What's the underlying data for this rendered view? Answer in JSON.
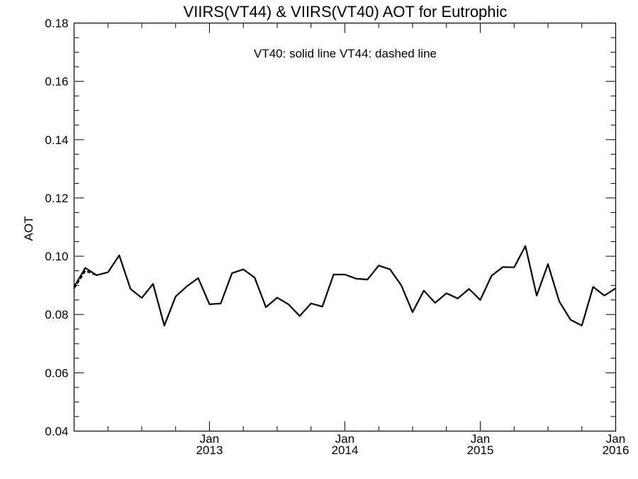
{
  "chart_data": {
    "type": "line",
    "title": "VIIRS(VT44) & VIIRS(VT40)  AOT for Eutrophic",
    "annotation": "VT40: solid line   VT44: dashed line",
    "ylabel": "AOT",
    "xlabel": "",
    "ylim": [
      0.04,
      0.18
    ],
    "xlim": [
      "2012-01",
      "2016-01"
    ],
    "yticks": [
      "0.04",
      "0.06",
      "0.08",
      "0.10",
      "0.12",
      "0.14",
      "0.16",
      "0.18"
    ],
    "xticks": [
      {
        "x": "2013-01",
        "month": "Jan",
        "year": "2013"
      },
      {
        "x": "2014-01",
        "month": "Jan",
        "year": "2014"
      },
      {
        "x": "2015-01",
        "month": "Jan",
        "year": "2015"
      },
      {
        "x": "2016-01",
        "month": "Jan",
        "year": "2016"
      }
    ],
    "series": [
      {
        "name": "VT40",
        "style": "solid",
        "color": "#000000",
        "x": [
          "2012-01",
          "2012-02",
          "2012-03",
          "2012-04",
          "2012-05",
          "2012-06",
          "2012-07",
          "2012-08",
          "2012-09",
          "2012-10",
          "2012-11",
          "2012-12",
          "2013-01",
          "2013-02",
          "2013-03",
          "2013-04",
          "2013-05",
          "2013-06",
          "2013-07",
          "2013-08",
          "2013-09",
          "2013-10",
          "2013-11",
          "2013-12",
          "2014-01",
          "2014-02",
          "2014-03",
          "2014-04",
          "2014-05",
          "2014-06",
          "2014-07",
          "2014-08",
          "2014-09",
          "2014-10",
          "2014-11",
          "2014-12",
          "2015-01",
          "2015-02",
          "2015-03",
          "2015-04",
          "2015-05",
          "2015-06",
          "2015-07",
          "2015-08",
          "2015-09",
          "2015-10",
          "2015-11",
          "2015-12",
          "2016-01"
        ],
        "y": [
          0.0895,
          0.096,
          0.0935,
          0.0945,
          0.1003,
          0.0888,
          0.0857,
          0.0905,
          0.0762,
          0.0862,
          0.0897,
          0.0925,
          0.0835,
          0.0838,
          0.0942,
          0.0955,
          0.0927,
          0.0825,
          0.0858,
          0.0835,
          0.0795,
          0.0838,
          0.0827,
          0.0937,
          0.0937,
          0.0923,
          0.092,
          0.0968,
          0.0955,
          0.09,
          0.0808,
          0.0882,
          0.084,
          0.0873,
          0.0855,
          0.0888,
          0.085,
          0.0933,
          0.0963,
          0.0962,
          0.1035,
          0.0865,
          0.0973,
          0.0845,
          0.0782,
          0.0762,
          0.0895,
          0.0865,
          0.089
        ]
      },
      {
        "name": "VT44",
        "style": "dashed",
        "color": "#000000",
        "x": [
          "2012-01",
          "2012-02",
          "2012-03"
        ],
        "y": [
          0.089,
          0.095,
          0.0935
        ]
      }
    ],
    "grid": false,
    "legend": "none"
  }
}
